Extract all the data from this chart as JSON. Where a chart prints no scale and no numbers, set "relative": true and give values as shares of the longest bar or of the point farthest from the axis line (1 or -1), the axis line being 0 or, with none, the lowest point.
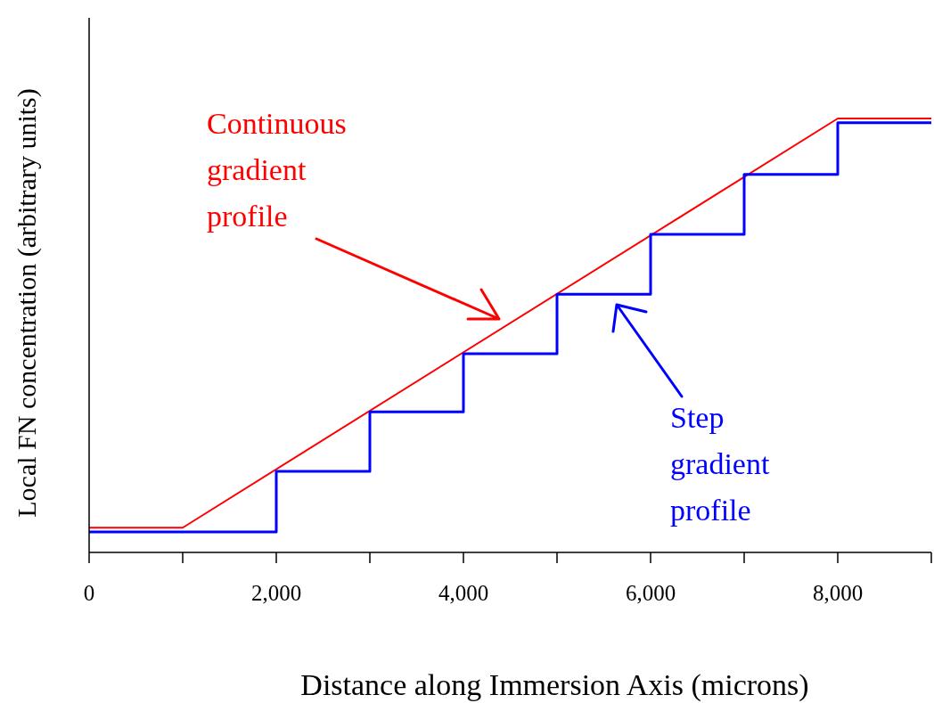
{
  "chart_data": {
    "type": "line",
    "relative": true,
    "xlabel": "Distance along Immersion Axis (microns)",
    "ylabel": "Local FN concentration (arbitrary units)",
    "xlim": [
      0,
      9000
    ],
    "xticks": [
      0,
      {
        "value": 1000,
        "label": null
      },
      {
        "value": 2000,
        "label": "2,000"
      },
      {
        "value": 3000,
        "label": null
      },
      {
        "value": 4000,
        "label": "4,000"
      },
      {
        "value": 5000,
        "label": null
      },
      {
        "value": 6000,
        "label": "6,000"
      },
      {
        "value": 7000,
        "label": null
      },
      {
        "value": 8000,
        "label": "8,000"
      },
      {
        "value": 9000,
        "label": null
      }
    ],
    "series": [
      {
        "name": "Continuous gradient profile",
        "color": "#ff0000",
        "x": [
          0,
          1000,
          8000,
          9000
        ],
        "values": [
          0.057,
          0.057,
          1,
          1
        ]
      },
      {
        "name": "Step gradient profile",
        "type": "step",
        "color": "#0000ff",
        "x": [
          0,
          2000,
          3000,
          4000,
          5000,
          6000,
          7000,
          8000,
          9000
        ],
        "values": [
          0.047,
          0.187,
          0.324,
          0.458,
          0.595,
          0.733,
          0.871,
          0.99,
          0.99
        ]
      }
    ]
  }
}
